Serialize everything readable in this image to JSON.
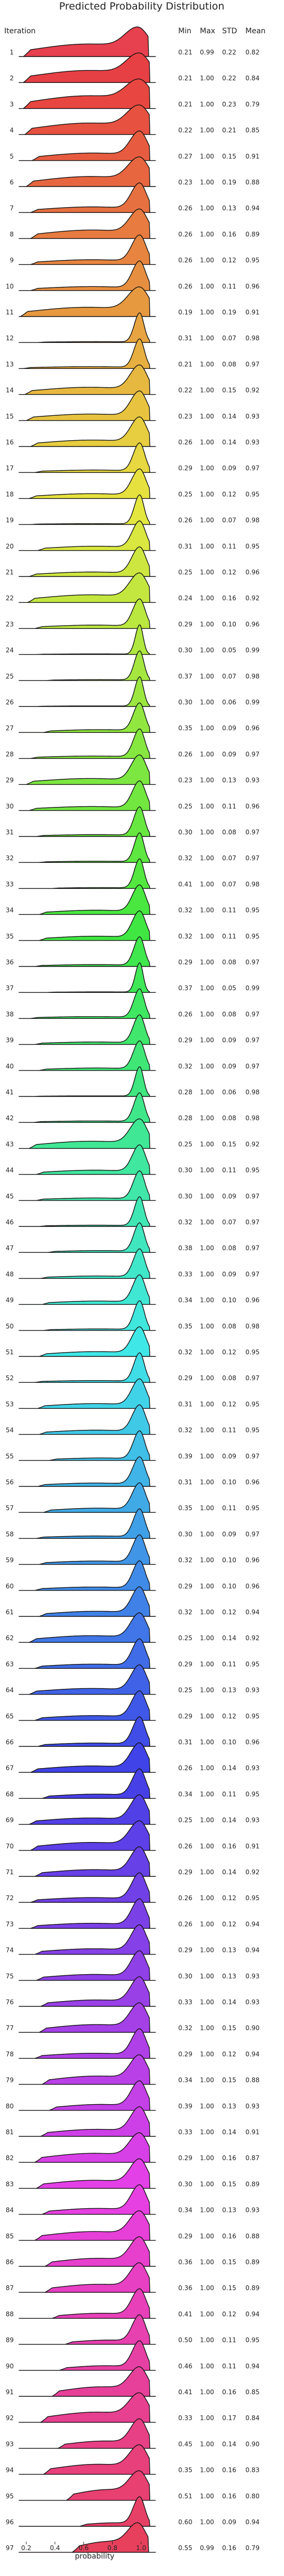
{
  "chart_data": {
    "type": "ridgeline",
    "title": "Predicted Probability Distribution",
    "row_header": "Iteration",
    "stat_headers": {
      "min": "Min",
      "max": "Max",
      "std": "STD",
      "mean": "Mean"
    },
    "xlabel": "probability",
    "xlim": [
      0.15,
      1.1
    ],
    "xticks": [
      0.2,
      0.4,
      0.6,
      0.8,
      1.0
    ],
    "rows": [
      {
        "it": 1,
        "min": "0.21",
        "max": "0.99",
        "std": "0.22",
        "mean": "0.82"
      },
      {
        "it": 2,
        "min": "0.21",
        "max": "1.00",
        "std": "0.22",
        "mean": "0.84"
      },
      {
        "it": 3,
        "min": "0.21",
        "max": "1.00",
        "std": "0.23",
        "mean": "0.79"
      },
      {
        "it": 4,
        "min": "0.22",
        "max": "1.00",
        "std": "0.21",
        "mean": "0.85"
      },
      {
        "it": 5,
        "min": "0.27",
        "max": "1.00",
        "std": "0.15",
        "mean": "0.91"
      },
      {
        "it": 6,
        "min": "0.23",
        "max": "1.00",
        "std": "0.19",
        "mean": "0.88"
      },
      {
        "it": 7,
        "min": "0.26",
        "max": "1.00",
        "std": "0.13",
        "mean": "0.94"
      },
      {
        "it": 8,
        "min": "0.26",
        "max": "1.00",
        "std": "0.16",
        "mean": "0.89"
      },
      {
        "it": 9,
        "min": "0.26",
        "max": "1.00",
        "std": "0.12",
        "mean": "0.95"
      },
      {
        "it": 10,
        "min": "0.26",
        "max": "1.00",
        "std": "0.11",
        "mean": "0.96"
      },
      {
        "it": 11,
        "min": "0.19",
        "max": "1.00",
        "std": "0.19",
        "mean": "0.91"
      },
      {
        "it": 12,
        "min": "0.31",
        "max": "1.00",
        "std": "0.07",
        "mean": "0.98"
      },
      {
        "it": 13,
        "min": "0.21",
        "max": "1.00",
        "std": "0.08",
        "mean": "0.97"
      },
      {
        "it": 14,
        "min": "0.22",
        "max": "1.00",
        "std": "0.15",
        "mean": "0.92"
      },
      {
        "it": 15,
        "min": "0.23",
        "max": "1.00",
        "std": "0.14",
        "mean": "0.93"
      },
      {
        "it": 16,
        "min": "0.26",
        "max": "1.00",
        "std": "0.14",
        "mean": "0.93"
      },
      {
        "it": 17,
        "min": "0.29",
        "max": "1.00",
        "std": "0.09",
        "mean": "0.97"
      },
      {
        "it": 18,
        "min": "0.25",
        "max": "1.00",
        "std": "0.12",
        "mean": "0.95"
      },
      {
        "it": 19,
        "min": "0.26",
        "max": "1.00",
        "std": "0.07",
        "mean": "0.98"
      },
      {
        "it": 20,
        "min": "0.31",
        "max": "1.00",
        "std": "0.11",
        "mean": "0.95"
      },
      {
        "it": 21,
        "min": "0.25",
        "max": "1.00",
        "std": "0.12",
        "mean": "0.96"
      },
      {
        "it": 22,
        "min": "0.24",
        "max": "1.00",
        "std": "0.16",
        "mean": "0.92"
      },
      {
        "it": 23,
        "min": "0.29",
        "max": "1.00",
        "std": "0.10",
        "mean": "0.96"
      },
      {
        "it": 24,
        "min": "0.30",
        "max": "1.00",
        "std": "0.05",
        "mean": "0.99"
      },
      {
        "it": 25,
        "min": "0.37",
        "max": "1.00",
        "std": "0.07",
        "mean": "0.98"
      },
      {
        "it": 26,
        "min": "0.30",
        "max": "1.00",
        "std": "0.06",
        "mean": "0.99"
      },
      {
        "it": 27,
        "min": "0.35",
        "max": "1.00",
        "std": "0.09",
        "mean": "0.96"
      },
      {
        "it": 28,
        "min": "0.26",
        "max": "1.00",
        "std": "0.09",
        "mean": "0.97"
      },
      {
        "it": 29,
        "min": "0.23",
        "max": "1.00",
        "std": "0.13",
        "mean": "0.93"
      },
      {
        "it": 30,
        "min": "0.25",
        "max": "1.00",
        "std": "0.11",
        "mean": "0.96"
      },
      {
        "it": 31,
        "min": "0.30",
        "max": "1.00",
        "std": "0.08",
        "mean": "0.97"
      },
      {
        "it": 32,
        "min": "0.32",
        "max": "1.00",
        "std": "0.07",
        "mean": "0.97"
      },
      {
        "it": 33,
        "min": "0.41",
        "max": "1.00",
        "std": "0.07",
        "mean": "0.98"
      },
      {
        "it": 34,
        "min": "0.32",
        "max": "1.00",
        "std": "0.11",
        "mean": "0.95"
      },
      {
        "it": 35,
        "min": "0.32",
        "max": "1.00",
        "std": "0.11",
        "mean": "0.95"
      },
      {
        "it": 36,
        "min": "0.29",
        "max": "1.00",
        "std": "0.08",
        "mean": "0.97"
      },
      {
        "it": 37,
        "min": "0.37",
        "max": "1.00",
        "std": "0.05",
        "mean": "0.99"
      },
      {
        "it": 38,
        "min": "0.26",
        "max": "1.00",
        "std": "0.08",
        "mean": "0.97"
      },
      {
        "it": 39,
        "min": "0.29",
        "max": "1.00",
        "std": "0.09",
        "mean": "0.97"
      },
      {
        "it": 40,
        "min": "0.32",
        "max": "1.00",
        "std": "0.09",
        "mean": "0.97"
      },
      {
        "it": 41,
        "min": "0.28",
        "max": "1.00",
        "std": "0.06",
        "mean": "0.98"
      },
      {
        "it": 42,
        "min": "0.28",
        "max": "1.00",
        "std": "0.08",
        "mean": "0.98"
      },
      {
        "it": 43,
        "min": "0.25",
        "max": "1.00",
        "std": "0.15",
        "mean": "0.92"
      },
      {
        "it": 44,
        "min": "0.30",
        "max": "1.00",
        "std": "0.11",
        "mean": "0.95"
      },
      {
        "it": 45,
        "min": "0.30",
        "max": "1.00",
        "std": "0.09",
        "mean": "0.97"
      },
      {
        "it": 46,
        "min": "0.32",
        "max": "1.00",
        "std": "0.07",
        "mean": "0.97"
      },
      {
        "it": 47,
        "min": "0.38",
        "max": "1.00",
        "std": "0.08",
        "mean": "0.97"
      },
      {
        "it": 48,
        "min": "0.33",
        "max": "1.00",
        "std": "0.09",
        "mean": "0.97"
      },
      {
        "it": 49,
        "min": "0.34",
        "max": "1.00",
        "std": "0.10",
        "mean": "0.96"
      },
      {
        "it": 50,
        "min": "0.35",
        "max": "1.00",
        "std": "0.08",
        "mean": "0.98"
      },
      {
        "it": 51,
        "min": "0.32",
        "max": "1.00",
        "std": "0.12",
        "mean": "0.95"
      },
      {
        "it": 52,
        "min": "0.29",
        "max": "1.00",
        "std": "0.08",
        "mean": "0.97"
      },
      {
        "it": 53,
        "min": "0.31",
        "max": "1.00",
        "std": "0.12",
        "mean": "0.95"
      },
      {
        "it": 54,
        "min": "0.32",
        "max": "1.00",
        "std": "0.11",
        "mean": "0.95"
      },
      {
        "it": 55,
        "min": "0.39",
        "max": "1.00",
        "std": "0.09",
        "mean": "0.97"
      },
      {
        "it": 56,
        "min": "0.31",
        "max": "1.00",
        "std": "0.10",
        "mean": "0.96"
      },
      {
        "it": 57,
        "min": "0.35",
        "max": "1.00",
        "std": "0.11",
        "mean": "0.95"
      },
      {
        "it": 58,
        "min": "0.30",
        "max": "1.00",
        "std": "0.09",
        "mean": "0.97"
      },
      {
        "it": 59,
        "min": "0.32",
        "max": "1.00",
        "std": "0.10",
        "mean": "0.96"
      },
      {
        "it": 60,
        "min": "0.29",
        "max": "1.00",
        "std": "0.10",
        "mean": "0.96"
      },
      {
        "it": 61,
        "min": "0.32",
        "max": "1.00",
        "std": "0.12",
        "mean": "0.94"
      },
      {
        "it": 62,
        "min": "0.25",
        "max": "1.00",
        "std": "0.14",
        "mean": "0.92"
      },
      {
        "it": 63,
        "min": "0.29",
        "max": "1.00",
        "std": "0.11",
        "mean": "0.95"
      },
      {
        "it": 64,
        "min": "0.25",
        "max": "1.00",
        "std": "0.13",
        "mean": "0.93"
      },
      {
        "it": 65,
        "min": "0.29",
        "max": "1.00",
        "std": "0.12",
        "mean": "0.95"
      },
      {
        "it": 66,
        "min": "0.31",
        "max": "1.00",
        "std": "0.10",
        "mean": "0.96"
      },
      {
        "it": 67,
        "min": "0.26",
        "max": "1.00",
        "std": "0.14",
        "mean": "0.93"
      },
      {
        "it": 68,
        "min": "0.34",
        "max": "1.00",
        "std": "0.11",
        "mean": "0.95"
      },
      {
        "it": 69,
        "min": "0.25",
        "max": "1.00",
        "std": "0.14",
        "mean": "0.93"
      },
      {
        "it": 70,
        "min": "0.26",
        "max": "1.00",
        "std": "0.16",
        "mean": "0.91"
      },
      {
        "it": 71,
        "min": "0.29",
        "max": "1.00",
        "std": "0.14",
        "mean": "0.92"
      },
      {
        "it": 72,
        "min": "0.26",
        "max": "1.00",
        "std": "0.12",
        "mean": "0.95"
      },
      {
        "it": 73,
        "min": "0.26",
        "max": "1.00",
        "std": "0.12",
        "mean": "0.94"
      },
      {
        "it": 74,
        "min": "0.29",
        "max": "1.00",
        "std": "0.13",
        "mean": "0.94"
      },
      {
        "it": 75,
        "min": "0.30",
        "max": "1.00",
        "std": "0.13",
        "mean": "0.93"
      },
      {
        "it": 76,
        "min": "0.33",
        "max": "1.00",
        "std": "0.14",
        "mean": "0.93"
      },
      {
        "it": 77,
        "min": "0.32",
        "max": "1.00",
        "std": "0.15",
        "mean": "0.90"
      },
      {
        "it": 78,
        "min": "0.29",
        "max": "1.00",
        "std": "0.12",
        "mean": "0.94"
      },
      {
        "it": 79,
        "min": "0.34",
        "max": "1.00",
        "std": "0.15",
        "mean": "0.88"
      },
      {
        "it": 80,
        "min": "0.39",
        "max": "1.00",
        "std": "0.13",
        "mean": "0.93"
      },
      {
        "it": 81,
        "min": "0.33",
        "max": "1.00",
        "std": "0.14",
        "mean": "0.91"
      },
      {
        "it": 82,
        "min": "0.29",
        "max": "1.00",
        "std": "0.16",
        "mean": "0.87"
      },
      {
        "it": 83,
        "min": "0.30",
        "max": "1.00",
        "std": "0.15",
        "mean": "0.89"
      },
      {
        "it": 84,
        "min": "0.34",
        "max": "1.00",
        "std": "0.13",
        "mean": "0.93"
      },
      {
        "it": 85,
        "min": "0.29",
        "max": "1.00",
        "std": "0.16",
        "mean": "0.88"
      },
      {
        "it": 86,
        "min": "0.36",
        "max": "1.00",
        "std": "0.15",
        "mean": "0.89"
      },
      {
        "it": 87,
        "min": "0.36",
        "max": "1.00",
        "std": "0.15",
        "mean": "0.89"
      },
      {
        "it": 88,
        "min": "0.41",
        "max": "1.00",
        "std": "0.12",
        "mean": "0.94"
      },
      {
        "it": 89,
        "min": "0.50",
        "max": "1.00",
        "std": "0.11",
        "mean": "0.95"
      },
      {
        "it": 90,
        "min": "0.46",
        "max": "1.00",
        "std": "0.11",
        "mean": "0.94"
      },
      {
        "it": 91,
        "min": "0.41",
        "max": "1.00",
        "std": "0.16",
        "mean": "0.85"
      },
      {
        "it": 92,
        "min": "0.33",
        "max": "1.00",
        "std": "0.17",
        "mean": "0.84"
      },
      {
        "it": 93,
        "min": "0.45",
        "max": "1.00",
        "std": "0.14",
        "mean": "0.90"
      },
      {
        "it": 94,
        "min": "0.35",
        "max": "1.00",
        "std": "0.16",
        "mean": "0.83"
      },
      {
        "it": 95,
        "min": "0.51",
        "max": "1.00",
        "std": "0.16",
        "mean": "0.80"
      },
      {
        "it": 96,
        "min": "0.60",
        "max": "1.00",
        "std": "0.09",
        "mean": "0.94"
      },
      {
        "it": 97,
        "min": "0.55",
        "max": "0.99",
        "std": "0.16",
        "mean": "0.79"
      }
    ]
  }
}
